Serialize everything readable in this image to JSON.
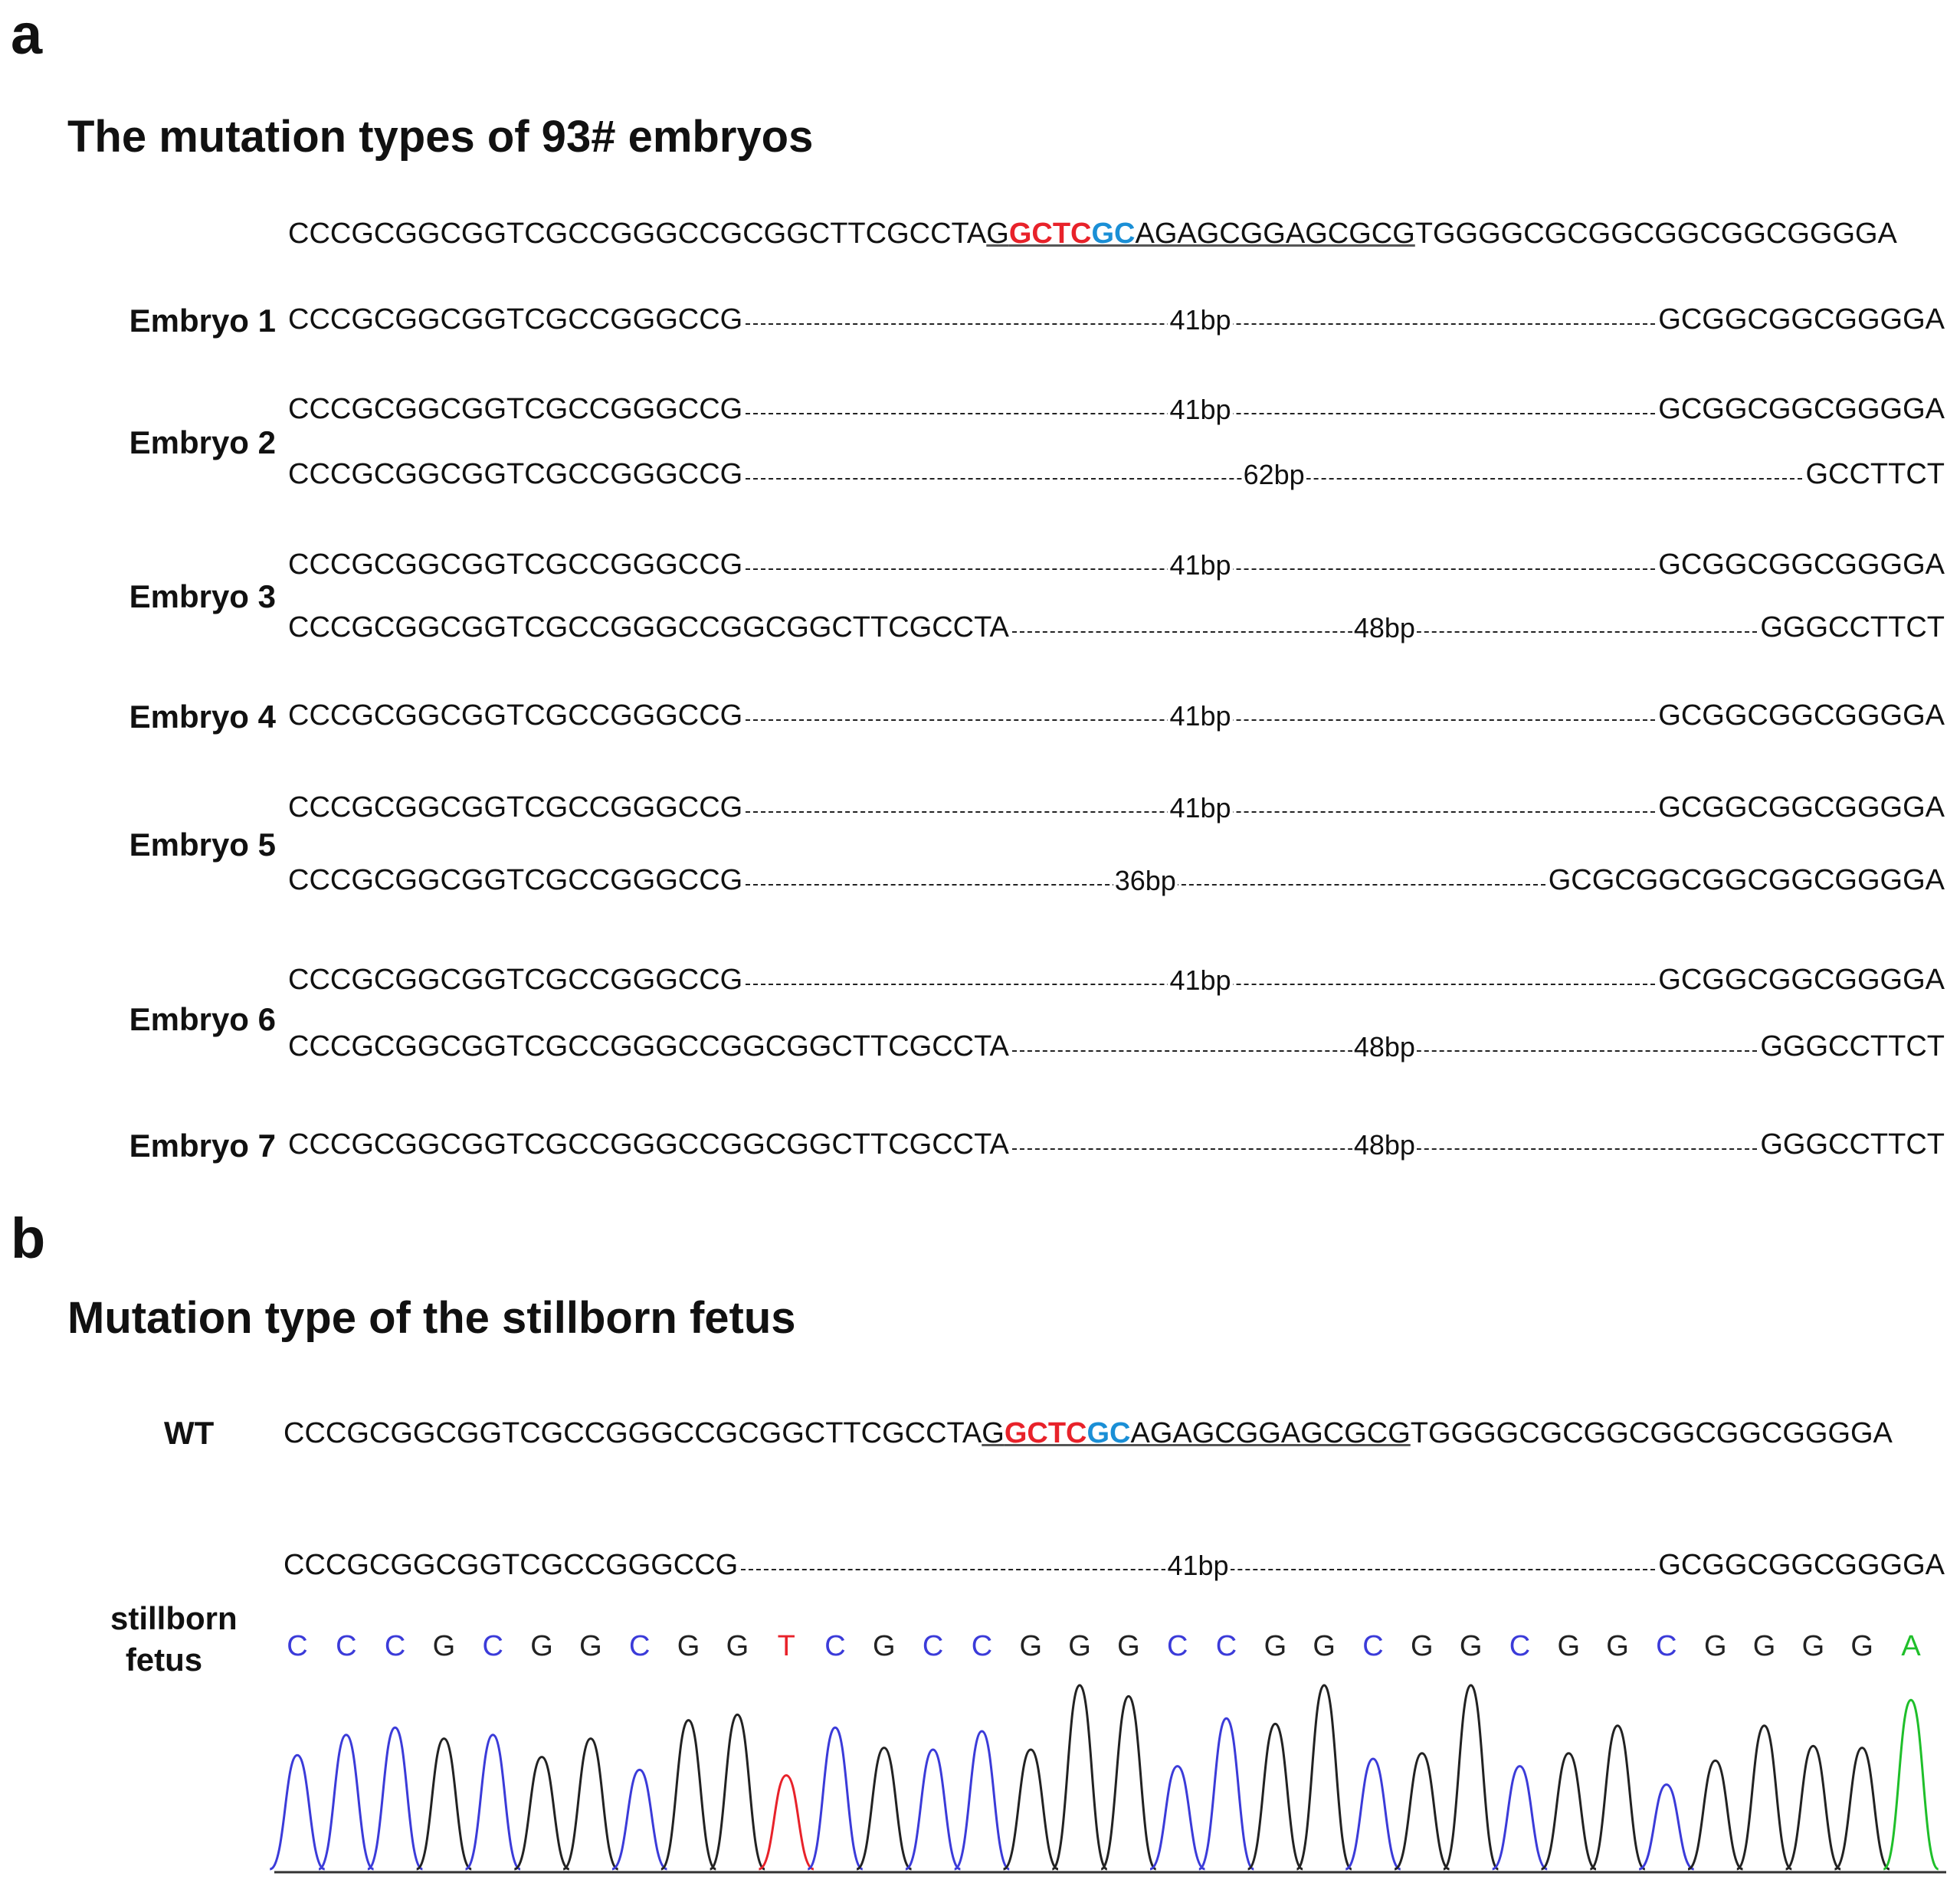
{
  "panel_a": {
    "letter": "a",
    "title": "The mutation types of 93# embryos",
    "wt": {
      "prefix": "CCCGCGGCGGTCGCCGGGCCGCGGCTTCGCCTA",
      "g1": "G",
      "red": "GCTC",
      "blue": "GC",
      "ul_rest": "AGAGCGGAGCGCG",
      "suffix": "TGGGGCGCGGCGGCGGCGGGGA"
    },
    "rows": [
      {
        "label": "Embryo 1",
        "left": "CCCGCGGCGGTCGCCGGGCCG",
        "size": "41bp",
        "right": "GCGGCGGCGGGGA"
      },
      {
        "label": "Embryo 2",
        "left": "CCCGCGGCGGTCGCCGGGCCG",
        "size": "41bp",
        "right": "GCGGCGGCGGGGA"
      },
      {
        "label": "",
        "left": "CCCGCGGCGGTCGCCGGGCCG",
        "size": "62bp",
        "right": "GCCTTCT"
      },
      {
        "label": "Embryo 3",
        "left": "CCCGCGGCGGTCGCCGGGCCG",
        "size": "41bp",
        "right": "GCGGCGGCGGGGA"
      },
      {
        "label": "",
        "left": "CCCGCGGCGGTCGCCGGGCCGGCGGCTTCGCCTA",
        "size": "48bp",
        "right": "GGGCCTTCT"
      },
      {
        "label": "Embryo 4",
        "left": "CCCGCGGCGGTCGCCGGGCCG",
        "size": "41bp",
        "right": "GCGGCGGCGGGGA"
      },
      {
        "label": "Embryo 5",
        "left": "CCCGCGGCGGTCGCCGGGCCG",
        "size": "41bp",
        "right": "GCGGCGGCGGGGA"
      },
      {
        "label": "",
        "left": "CCCGCGGCGGTCGCCGGGCCG",
        "size": "36bp",
        "right": "GCGCGGCGGCGGCGGGGA"
      },
      {
        "label": "Embryo 6",
        "left": "CCCGCGGCGGTCGCCGGGCCG",
        "size": "41bp",
        "right": "GCGGCGGCGGGGA"
      },
      {
        "label": "",
        "left": "CCCGCGGCGGTCGCCGGGCCGGCGGCTTCGCCTA",
        "size": "48bp",
        "right": "GGGCCTTCT"
      },
      {
        "label": "Embryo 7",
        "left": "CCCGCGGCGGTCGCCGGGCCGGCGGCTTCGCCTA",
        "size": "48bp",
        "right": "GGGCCTTCT"
      }
    ]
  },
  "panel_b": {
    "letter": "b",
    "title": "Mutation type of the stillborn fetus",
    "wt_label": "WT",
    "wt": {
      "prefix": "CCCGCGGCGGTCGCCGGGCCGCGGCTTCGCCTA",
      "g1": "G",
      "red": "GCTC",
      "blue": "GC",
      "ul_rest": "AGAGCGGAGCGCG",
      "suffix": "TGGGGCGCGGCGGCGGCGGGGA"
    },
    "mut": {
      "left": "CCCGCGGCGGTCGCCGGGCCG",
      "size": "41bp",
      "right": "GCGGCGGCGGGGA"
    },
    "fetus_label_1": "stillborn",
    "fetus_label_2": "fetus",
    "chromatogram": {
      "bases": [
        "C",
        "C",
        "C",
        "G",
        "C",
        "G",
        "G",
        "C",
        "G",
        "G",
        "T",
        "C",
        "G",
        "C",
        "C",
        "G",
        "G",
        "G",
        "C",
        "C",
        "G",
        "G",
        "C",
        "G",
        "G",
        "C",
        "G",
        "G",
        "C",
        "G",
        "G",
        "G",
        "G",
        "A"
      ],
      "peak_heights": [
        0.62,
        0.73,
        0.77,
        0.71,
        0.73,
        0.61,
        0.71,
        0.54,
        0.81,
        0.84,
        0.51,
        0.77,
        0.66,
        0.65,
        0.75,
        0.65,
        1.0,
        0.94,
        0.56,
        0.82,
        0.79,
        1.0,
        0.6,
        0.63,
        1.0,
        0.56,
        0.63,
        0.78,
        0.46,
        0.59,
        0.78,
        0.67,
        0.66,
        0.92
      ],
      "colors": {
        "C": "#3b3bd9",
        "G": "#222222",
        "T": "#e8222a",
        "A": "#1fbf2a"
      }
    }
  }
}
